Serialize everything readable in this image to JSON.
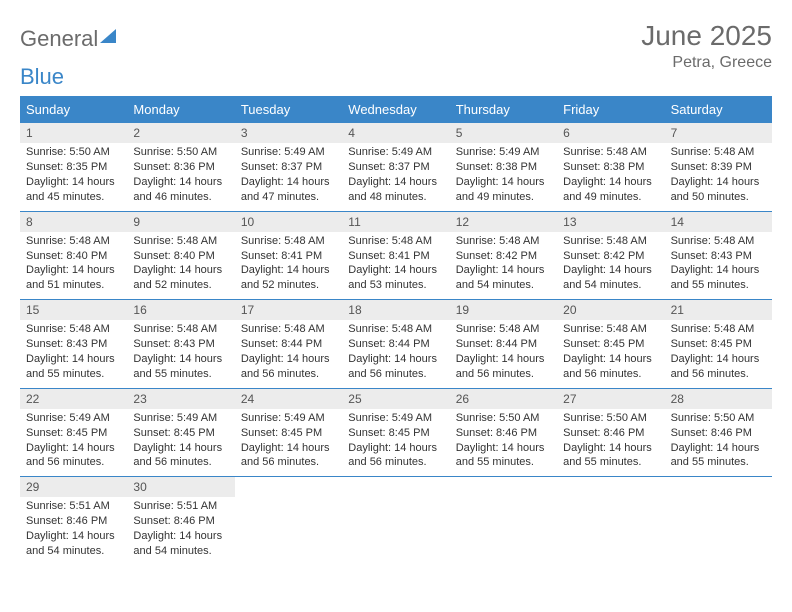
{
  "logo": {
    "part1": "General",
    "part2": "Blue"
  },
  "title": "June 2025",
  "location": "Petra, Greece",
  "colors": {
    "accent": "#3a86c8",
    "header_text": "#6b6b6b",
    "daynum_bg": "#ececec",
    "cell_text": "#333333",
    "white": "#ffffff"
  },
  "weekdays": [
    "Sunday",
    "Monday",
    "Tuesday",
    "Wednesday",
    "Thursday",
    "Friday",
    "Saturday"
  ],
  "days": [
    {
      "n": "1",
      "sunrise": "Sunrise: 5:50 AM",
      "sunset": "Sunset: 8:35 PM",
      "daylight": "Daylight: 14 hours and 45 minutes."
    },
    {
      "n": "2",
      "sunrise": "Sunrise: 5:50 AM",
      "sunset": "Sunset: 8:36 PM",
      "daylight": "Daylight: 14 hours and 46 minutes."
    },
    {
      "n": "3",
      "sunrise": "Sunrise: 5:49 AM",
      "sunset": "Sunset: 8:37 PM",
      "daylight": "Daylight: 14 hours and 47 minutes."
    },
    {
      "n": "4",
      "sunrise": "Sunrise: 5:49 AM",
      "sunset": "Sunset: 8:37 PM",
      "daylight": "Daylight: 14 hours and 48 minutes."
    },
    {
      "n": "5",
      "sunrise": "Sunrise: 5:49 AM",
      "sunset": "Sunset: 8:38 PM",
      "daylight": "Daylight: 14 hours and 49 minutes."
    },
    {
      "n": "6",
      "sunrise": "Sunrise: 5:48 AM",
      "sunset": "Sunset: 8:38 PM",
      "daylight": "Daylight: 14 hours and 49 minutes."
    },
    {
      "n": "7",
      "sunrise": "Sunrise: 5:48 AM",
      "sunset": "Sunset: 8:39 PM",
      "daylight": "Daylight: 14 hours and 50 minutes."
    },
    {
      "n": "8",
      "sunrise": "Sunrise: 5:48 AM",
      "sunset": "Sunset: 8:40 PM",
      "daylight": "Daylight: 14 hours and 51 minutes."
    },
    {
      "n": "9",
      "sunrise": "Sunrise: 5:48 AM",
      "sunset": "Sunset: 8:40 PM",
      "daylight": "Daylight: 14 hours and 52 minutes."
    },
    {
      "n": "10",
      "sunrise": "Sunrise: 5:48 AM",
      "sunset": "Sunset: 8:41 PM",
      "daylight": "Daylight: 14 hours and 52 minutes."
    },
    {
      "n": "11",
      "sunrise": "Sunrise: 5:48 AM",
      "sunset": "Sunset: 8:41 PM",
      "daylight": "Daylight: 14 hours and 53 minutes."
    },
    {
      "n": "12",
      "sunrise": "Sunrise: 5:48 AM",
      "sunset": "Sunset: 8:42 PM",
      "daylight": "Daylight: 14 hours and 54 minutes."
    },
    {
      "n": "13",
      "sunrise": "Sunrise: 5:48 AM",
      "sunset": "Sunset: 8:42 PM",
      "daylight": "Daylight: 14 hours and 54 minutes."
    },
    {
      "n": "14",
      "sunrise": "Sunrise: 5:48 AM",
      "sunset": "Sunset: 8:43 PM",
      "daylight": "Daylight: 14 hours and 55 minutes."
    },
    {
      "n": "15",
      "sunrise": "Sunrise: 5:48 AM",
      "sunset": "Sunset: 8:43 PM",
      "daylight": "Daylight: 14 hours and 55 minutes."
    },
    {
      "n": "16",
      "sunrise": "Sunrise: 5:48 AM",
      "sunset": "Sunset: 8:43 PM",
      "daylight": "Daylight: 14 hours and 55 minutes."
    },
    {
      "n": "17",
      "sunrise": "Sunrise: 5:48 AM",
      "sunset": "Sunset: 8:44 PM",
      "daylight": "Daylight: 14 hours and 56 minutes."
    },
    {
      "n": "18",
      "sunrise": "Sunrise: 5:48 AM",
      "sunset": "Sunset: 8:44 PM",
      "daylight": "Daylight: 14 hours and 56 minutes."
    },
    {
      "n": "19",
      "sunrise": "Sunrise: 5:48 AM",
      "sunset": "Sunset: 8:44 PM",
      "daylight": "Daylight: 14 hours and 56 minutes."
    },
    {
      "n": "20",
      "sunrise": "Sunrise: 5:48 AM",
      "sunset": "Sunset: 8:45 PM",
      "daylight": "Daylight: 14 hours and 56 minutes."
    },
    {
      "n": "21",
      "sunrise": "Sunrise: 5:48 AM",
      "sunset": "Sunset: 8:45 PM",
      "daylight": "Daylight: 14 hours and 56 minutes."
    },
    {
      "n": "22",
      "sunrise": "Sunrise: 5:49 AM",
      "sunset": "Sunset: 8:45 PM",
      "daylight": "Daylight: 14 hours and 56 minutes."
    },
    {
      "n": "23",
      "sunrise": "Sunrise: 5:49 AM",
      "sunset": "Sunset: 8:45 PM",
      "daylight": "Daylight: 14 hours and 56 minutes."
    },
    {
      "n": "24",
      "sunrise": "Sunrise: 5:49 AM",
      "sunset": "Sunset: 8:45 PM",
      "daylight": "Daylight: 14 hours and 56 minutes."
    },
    {
      "n": "25",
      "sunrise": "Sunrise: 5:49 AM",
      "sunset": "Sunset: 8:45 PM",
      "daylight": "Daylight: 14 hours and 56 minutes."
    },
    {
      "n": "26",
      "sunrise": "Sunrise: 5:50 AM",
      "sunset": "Sunset: 8:46 PM",
      "daylight": "Daylight: 14 hours and 55 minutes."
    },
    {
      "n": "27",
      "sunrise": "Sunrise: 5:50 AM",
      "sunset": "Sunset: 8:46 PM",
      "daylight": "Daylight: 14 hours and 55 minutes."
    },
    {
      "n": "28",
      "sunrise": "Sunrise: 5:50 AM",
      "sunset": "Sunset: 8:46 PM",
      "daylight": "Daylight: 14 hours and 55 minutes."
    },
    {
      "n": "29",
      "sunrise": "Sunrise: 5:51 AM",
      "sunset": "Sunset: 8:46 PM",
      "daylight": "Daylight: 14 hours and 54 minutes."
    },
    {
      "n": "30",
      "sunrise": "Sunrise: 5:51 AM",
      "sunset": "Sunset: 8:46 PM",
      "daylight": "Daylight: 14 hours and 54 minutes."
    }
  ]
}
